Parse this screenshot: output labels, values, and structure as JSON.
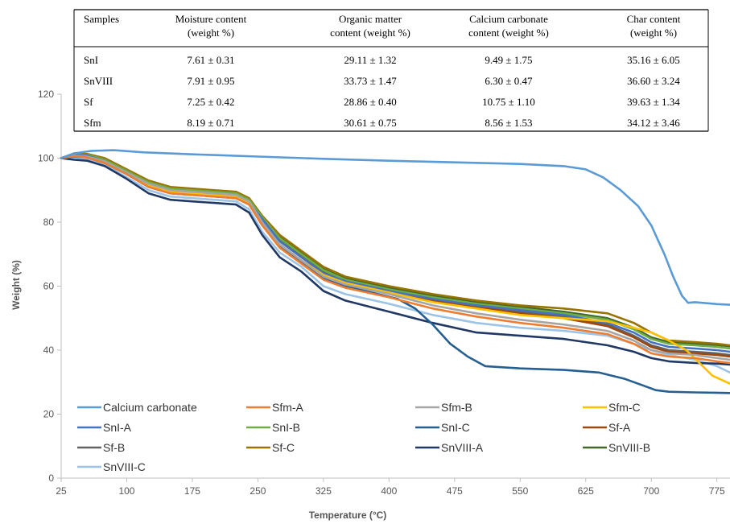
{
  "table": {
    "headers": [
      [
        "Samples"
      ],
      [
        "Moisture content",
        "(weight %)"
      ],
      [
        "Organic matter",
        "content (weight %)"
      ],
      [
        "Calcium carbonate",
        "content (weight %)"
      ],
      [
        "Char content",
        "(weight %)"
      ]
    ],
    "rows": [
      [
        "SnI",
        "7.61 ± 0.31",
        "29.11 ± 1.32",
        "9.49 ± 1.75",
        "35.16 ± 6.05"
      ],
      [
        "SnVIII",
        "7.91 ± 0.95",
        "33.73 ± 1.47",
        "6.30 ± 0.47",
        "36.60 ± 3.24"
      ],
      [
        "Sf",
        "7.25 ± 0.42",
        "28.86 ± 0.40",
        "10.75 ± 1.10",
        "39.63 ± 1.34"
      ],
      [
        "Sfm",
        "8.19 ± 0.71",
        "30.61 ± 0.75",
        "8.56 ± 1.53",
        "34.12 ± 3.46"
      ]
    ]
  },
  "chart_data": {
    "type": "line",
    "title": "",
    "xlabel": "Temperature (°C)",
    "ylabel": "Weight (%)",
    "xlim": [
      25,
      790
    ],
    "ylim": [
      0,
      120
    ],
    "xticks": [
      25,
      100,
      175,
      250,
      325,
      400,
      475,
      550,
      625,
      700,
      775
    ],
    "yticks": [
      0,
      20,
      40,
      60,
      80,
      100,
      120
    ],
    "grid": false,
    "legend_position": "bottom-left",
    "series": [
      {
        "name": "Calcium carbonate",
        "color": "#5B9BD5",
        "x": [
          25,
          40,
          60,
          85,
          120,
          175,
          250,
          325,
          400,
          475,
          550,
          600,
          625,
          645,
          665,
          685,
          700,
          715,
          725,
          735,
          742,
          750,
          775,
          790
        ],
        "y": [
          100,
          101.5,
          102.3,
          102.5,
          101.8,
          101.2,
          100.5,
          99.8,
          99.2,
          98.7,
          98.2,
          97.5,
          96.5,
          94,
          90,
          85,
          79,
          70,
          63,
          57,
          54.8,
          55,
          54.4,
          54.2
        ]
      },
      {
        "name": "Sfm-A",
        "color": "#ED7D31",
        "x": [
          25,
          40,
          55,
          75,
          100,
          125,
          150,
          175,
          200,
          225,
          240,
          255,
          275,
          300,
          325,
          350,
          400,
          450,
          500,
          550,
          600,
          650,
          680,
          700,
          720,
          750,
          775,
          790
        ],
        "y": [
          100,
          100.6,
          100.2,
          98.5,
          95,
          91,
          89,
          88.5,
          88,
          87.5,
          85.5,
          79,
          72,
          67,
          62,
          59.5,
          56.5,
          53,
          50.5,
          48.5,
          47,
          45,
          42,
          39,
          38,
          37.5,
          36.5,
          36
        ]
      },
      {
        "name": "Sfm-B",
        "color": "#A5A5A5",
        "x": [
          25,
          40,
          55,
          75,
          100,
          125,
          150,
          175,
          200,
          225,
          240,
          255,
          275,
          300,
          325,
          350,
          400,
          450,
          500,
          550,
          600,
          650,
          680,
          700,
          720,
          750,
          775,
          790
        ],
        "y": [
          100,
          100.8,
          100.5,
          99,
          95.5,
          92,
          90,
          89.5,
          89,
          88.5,
          86.5,
          80,
          73,
          68,
          63,
          60.5,
          57.5,
          54,
          51.5,
          49.5,
          48,
          46,
          43,
          40,
          39,
          38.5,
          37.5,
          37
        ]
      },
      {
        "name": "Sfm-C",
        "color": "#FFC000",
        "x": [
          25,
          40,
          55,
          75,
          100,
          125,
          150,
          175,
          200,
          225,
          240,
          255,
          275,
          300,
          325,
          350,
          400,
          450,
          500,
          550,
          600,
          650,
          680,
          700,
          720,
          740,
          755,
          770,
          790
        ],
        "y": [
          100,
          100.7,
          100.4,
          98.8,
          95.2,
          91.5,
          89.5,
          89,
          88.5,
          88,
          86,
          79.5,
          73,
          68,
          63.5,
          61,
          58,
          55,
          53,
          51,
          50,
          49,
          47,
          45.5,
          43,
          40,
          36,
          32,
          29.5
        ]
      },
      {
        "name": "SnI-A",
        "color": "#4472C4",
        "x": [
          25,
          40,
          55,
          75,
          100,
          125,
          150,
          175,
          200,
          225,
          240,
          255,
          275,
          300,
          325,
          350,
          400,
          450,
          500,
          550,
          600,
          650,
          680,
          700,
          720,
          750,
          775,
          790
        ],
        "y": [
          100,
          101,
          100.8,
          99,
          95,
          91.5,
          89.5,
          89,
          88.5,
          88,
          86,
          81,
          74,
          69,
          64,
          61.5,
          58.5,
          56,
          54,
          52.5,
          51,
          48.5,
          45.5,
          42.5,
          41,
          40.5,
          40,
          39.5
        ]
      },
      {
        "name": "SnI-B",
        "color": "#70AD47",
        "x": [
          25,
          40,
          55,
          75,
          100,
          125,
          150,
          175,
          200,
          225,
          240,
          255,
          275,
          300,
          325,
          350,
          400,
          450,
          500,
          550,
          600,
          650,
          680,
          700,
          720,
          750,
          775,
          790
        ],
        "y": [
          100,
          101.2,
          101,
          99.5,
          96,
          92.5,
          90.5,
          90,
          89.5,
          89,
          87,
          81.5,
          75,
          70,
          65,
          62,
          59,
          56.5,
          54.5,
          53,
          51.5,
          49.5,
          46.5,
          43.5,
          42,
          41.5,
          41,
          40.5
        ]
      },
      {
        "name": "SnI-C",
        "color": "#255E91",
        "x": [
          25,
          40,
          55,
          75,
          100,
          125,
          150,
          175,
          200,
          225,
          240,
          255,
          275,
          300,
          325,
          350,
          380,
          410,
          430,
          450,
          470,
          490,
          510,
          550,
          600,
          640,
          670,
          690,
          705,
          720,
          750,
          790
        ],
        "y": [
          100,
          100.5,
          100.2,
          98.5,
          95,
          91,
          89,
          88.5,
          88,
          87.5,
          85.5,
          79.5,
          72.5,
          67.5,
          62.5,
          60,
          58,
          56,
          53,
          48,
          42,
          38,
          35,
          34.3,
          33.8,
          33,
          31,
          29,
          27.5,
          27,
          26.8,
          26.6
        ]
      },
      {
        "name": "Sf-A",
        "color": "#9E480E",
        "x": [
          25,
          40,
          55,
          75,
          100,
          125,
          150,
          175,
          200,
          225,
          240,
          255,
          275,
          300,
          325,
          350,
          400,
          450,
          500,
          550,
          600,
          650,
          680,
          700,
          720,
          750,
          775,
          790
        ],
        "y": [
          100,
          101,
          100.6,
          99,
          95.5,
          92,
          90,
          89.5,
          89,
          88.5,
          86.5,
          80.5,
          74,
          69,
          64,
          61,
          58,
          55.5,
          53.5,
          51.5,
          50,
          47.5,
          44,
          41,
          39.5,
          39,
          38.5,
          38
        ]
      },
      {
        "name": "Sf-B",
        "color": "#636363",
        "x": [
          25,
          40,
          55,
          75,
          100,
          125,
          150,
          175,
          200,
          225,
          240,
          255,
          275,
          300,
          325,
          350,
          400,
          450,
          500,
          550,
          600,
          650,
          680,
          700,
          720,
          750,
          775,
          790
        ],
        "y": [
          100,
          101.3,
          101,
          99.2,
          95.8,
          92.2,
          90.2,
          89.7,
          89.2,
          88.7,
          86.7,
          80.8,
          74.5,
          69.5,
          64.5,
          61.5,
          58.5,
          56,
          54,
          52,
          50.5,
          48,
          44.5,
          41.5,
          40,
          39.5,
          39,
          38.5
        ]
      },
      {
        "name": "Sf-C",
        "color": "#997300",
        "x": [
          25,
          40,
          55,
          75,
          100,
          125,
          150,
          175,
          200,
          225,
          240,
          255,
          275,
          300,
          325,
          350,
          400,
          450,
          500,
          550,
          600,
          650,
          680,
          700,
          720,
          750,
          775,
          790
        ],
        "y": [
          100,
          101.5,
          101.3,
          100,
          96.5,
          93,
          91,
          90.5,
          90,
          89.5,
          87.5,
          82,
          76,
          71,
          66,
          63,
          60,
          57.5,
          55.5,
          54,
          53,
          51.5,
          48.5,
          45.5,
          43,
          42.5,
          42,
          41.5
        ]
      },
      {
        "name": "SnVIII-A",
        "color": "#203864",
        "x": [
          25,
          40,
          55,
          75,
          100,
          125,
          150,
          175,
          200,
          225,
          240,
          255,
          275,
          300,
          325,
          350,
          400,
          450,
          500,
          550,
          600,
          650,
          680,
          700,
          720,
          750,
          775,
          790
        ],
        "y": [
          100,
          99.5,
          99.2,
          97.5,
          93.5,
          89,
          87,
          86.5,
          86,
          85.5,
          83,
          76,
          69,
          64.5,
          58.5,
          55.5,
          52,
          48.5,
          45.5,
          44.5,
          43.5,
          41.5,
          39.5,
          37.5,
          36.5,
          36,
          35.8,
          35.5
        ]
      },
      {
        "name": "SnVIII-B",
        "color": "#43682B",
        "x": [
          25,
          40,
          55,
          75,
          100,
          125,
          150,
          175,
          200,
          225,
          240,
          255,
          275,
          300,
          325,
          350,
          400,
          450,
          500,
          550,
          600,
          650,
          680,
          700,
          720,
          750,
          775,
          790
        ],
        "y": [
          100,
          101.4,
          101.2,
          99.7,
          96.2,
          92.7,
          90.7,
          90.2,
          89.7,
          89.2,
          87.2,
          81.7,
          75.5,
          70.5,
          65.5,
          62.5,
          59.5,
          57,
          55,
          53.5,
          52,
          50,
          47,
          44,
          42.5,
          42,
          41.6,
          41.2
        ]
      },
      {
        "name": "SnVIII-C",
        "color": "#9DC3E6",
        "x": [
          25,
          40,
          55,
          75,
          100,
          125,
          150,
          175,
          200,
          225,
          240,
          255,
          275,
          300,
          325,
          350,
          400,
          450,
          500,
          550,
          600,
          650,
          680,
          700,
          720,
          750,
          775,
          790
        ],
        "y": [
          100,
          100.2,
          99.8,
          98,
          94,
          90,
          88,
          87.5,
          87,
          86.5,
          84,
          77,
          70.5,
          66,
          60,
          57.5,
          54.5,
          51,
          48.5,
          47,
          46,
          44.5,
          42,
          40,
          38.5,
          37,
          35,
          33
        ]
      }
    ]
  }
}
